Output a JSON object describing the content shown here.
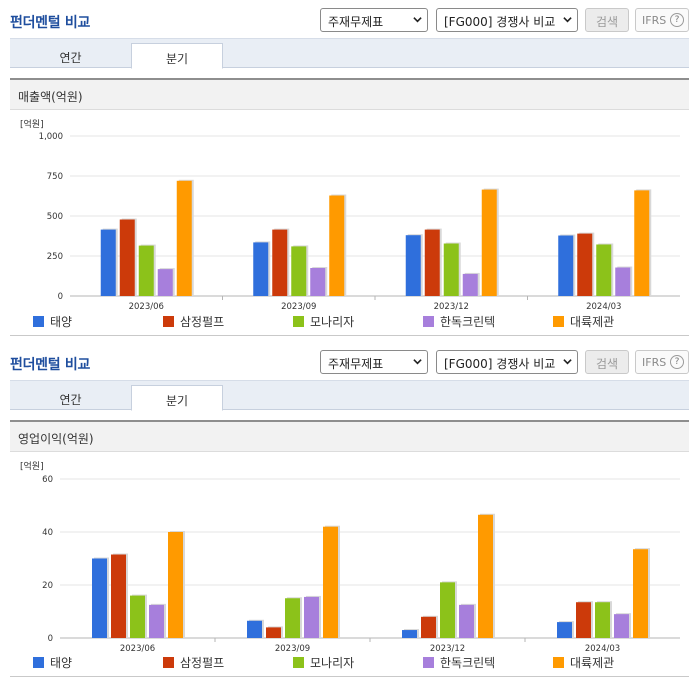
{
  "panels": [
    {
      "title": "펀더멘털 비교",
      "select_statement": "주재무제표",
      "select_group": "[FG000] 경쟁사 비교",
      "search_label": "검색",
      "ifrs_label": "IFRS",
      "tabs": [
        {
          "label": "연간"
        },
        {
          "label": "분기"
        }
      ],
      "active_tab": "분기",
      "section_title": "매출액(억원)",
      "unit_label": "[억원]"
    },
    {
      "title": "펀더멘털 비교",
      "select_statement": "주재무제표",
      "select_group": "[FG000] 경쟁사 비교",
      "search_label": "검색",
      "ifrs_label": "IFRS",
      "tabs": [
        {
          "label": "연간"
        },
        {
          "label": "분기"
        }
      ],
      "active_tab": "분기",
      "section_title": "영업이익(억원)",
      "unit_label": "[억원]"
    }
  ],
  "colors": {
    "태양": "#2f6fdc",
    "삼정펄프": "#cc3a0a",
    "모나리자": "#8cc21a",
    "한독크린텍": "#a77fdc",
    "대륙제관": "#ff9a00",
    "title": "#1f4e9e"
  },
  "chart_data": [
    {
      "type": "bar",
      "title": "",
      "ylabel": "[억원]",
      "categories": [
        "2023/06",
        "2023/09",
        "2023/12",
        "2024/03"
      ],
      "ylim": [
        0,
        1000
      ],
      "yticks": [
        "0",
        "250",
        "500",
        "750",
        "1,000"
      ],
      "series": [
        {
          "name": "태양",
          "values": [
            415,
            335,
            380,
            378
          ]
        },
        {
          "name": "삼정펄프",
          "values": [
            478,
            415,
            415,
            390
          ]
        },
        {
          "name": "모나리자",
          "values": [
            315,
            310,
            328,
            322
          ]
        },
        {
          "name": "한독크린텍",
          "values": [
            168,
            175,
            138,
            178
          ]
        },
        {
          "name": "대륙제관",
          "values": [
            720,
            628,
            665,
            660
          ]
        }
      ]
    },
    {
      "type": "bar",
      "title": "",
      "ylabel": "[억원]",
      "categories": [
        "2023/06",
        "2023/09",
        "2023/12",
        "2024/03"
      ],
      "ylim": [
        0,
        60
      ],
      "yticks": [
        "0",
        "20",
        "40",
        "60"
      ],
      "series": [
        {
          "name": "태양",
          "values": [
            30,
            6.5,
            3,
            6
          ]
        },
        {
          "name": "삼정펄프",
          "values": [
            31.5,
            4,
            8,
            13.5
          ]
        },
        {
          "name": "모나리자",
          "values": [
            16,
            15,
            21,
            13.5
          ]
        },
        {
          "name": "한독크린텍",
          "values": [
            12.5,
            15.5,
            12.5,
            9
          ]
        },
        {
          "name": "대륙제관",
          "values": [
            40,
            42,
            46.5,
            33.5
          ]
        }
      ]
    }
  ]
}
